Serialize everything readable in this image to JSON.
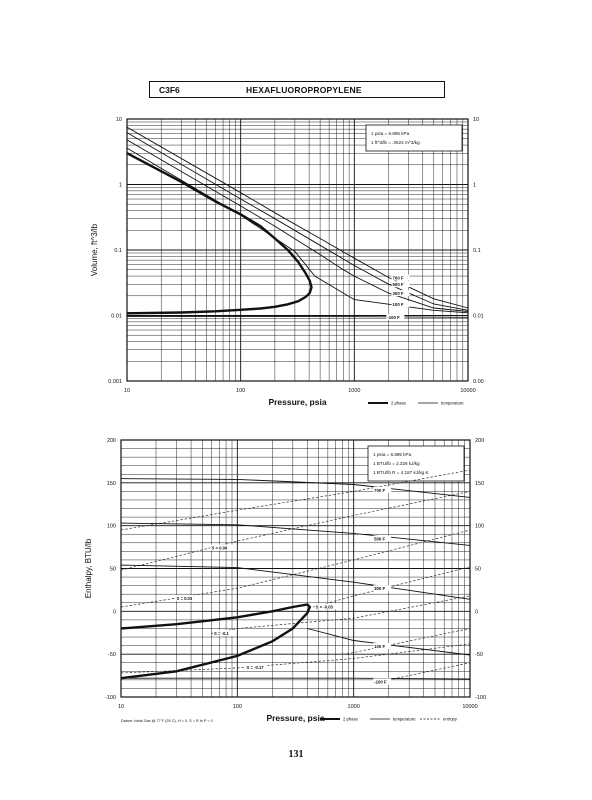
{
  "header": {
    "formula": "C3F6",
    "name": "HEXAFLUOROPROPYLENE"
  },
  "page_number": "131",
  "chart_data": [
    {
      "type": "line",
      "xlabel": "Pressure,  psia",
      "ylabel": "Volume,  ft^3/lb",
      "xscale": "log",
      "yscale": "log",
      "xlim": [
        10,
        10000
      ],
      "ylim": [
        0.001,
        10
      ],
      "x_ticks": [
        "10",
        "100",
        "1000",
        "10000"
      ],
      "y_ticks_left": [
        "0.001",
        "0.01",
        "0.1",
        "1",
        "10"
      ],
      "y_ticks_right": [
        "0.00",
        "0.01",
        "0.1",
        "1",
        "10"
      ],
      "grid": true,
      "info_box": [
        "1 psia  =  6.895 kPa",
        "1 ft^3/lb  =  .0624 m^3/kg"
      ],
      "legend": [
        {
          "label": "2 phase",
          "style": "heavy"
        },
        {
          "label": "temperature",
          "style": "thin"
        }
      ],
      "two_phase": {
        "x": [
          10,
          30,
          60,
          100,
          150,
          200,
          260,
          320,
          370,
          405,
          420,
          405,
          370,
          320,
          260,
          200,
          150,
          100,
          60,
          30,
          10
        ],
        "y": [
          3.0,
          1.1,
          0.55,
          0.35,
          0.23,
          0.15,
          0.1,
          0.066,
          0.045,
          0.034,
          0.027,
          0.022,
          0.019,
          0.0165,
          0.0148,
          0.0136,
          0.0128,
          0.0122,
          0.0116,
          0.0111,
          0.0108
        ]
      },
      "series": [
        {
          "name": "700 F",
          "x": [
            10,
            100,
            200,
            500,
            1000,
            2000,
            5000,
            10000
          ],
          "y": [
            7.5,
            0.75,
            0.37,
            0.15,
            0.075,
            0.038,
            0.018,
            0.013
          ]
        },
        {
          "name": "500 F",
          "x": [
            10,
            100,
            200,
            500,
            1000,
            2000,
            5000,
            10000
          ],
          "y": [
            6.2,
            0.6,
            0.3,
            0.118,
            0.058,
            0.03,
            0.015,
            0.012
          ]
        },
        {
          "name": "300 F",
          "x": [
            10,
            100,
            200,
            500,
            800,
            1000,
            2000,
            5000,
            10000
          ],
          "y": [
            4.8,
            0.47,
            0.23,
            0.085,
            0.05,
            0.04,
            0.022,
            0.013,
            0.0115
          ]
        },
        {
          "name": "100 F",
          "x": [
            10,
            100,
            300,
            450,
            1000,
            5000,
            10000
          ],
          "y": [
            3.6,
            0.34,
            0.095,
            0.04,
            0.0175,
            0.012,
            0.011
          ]
        },
        {
          "name": "-100 F",
          "x": [
            10,
            100,
            1000,
            10000
          ],
          "y": [
            0.0097,
            0.0097,
            0.0096,
            0.0094
          ]
        }
      ]
    },
    {
      "type": "line",
      "xlabel": "Pressure,  psia",
      "ylabel": "Enthalpy,  BTU/lb",
      "xscale": "log",
      "xlim": [
        10,
        10000
      ],
      "ylim": [
        -100,
        200
      ],
      "x_ticks": [
        "10",
        "100",
        "1000",
        "10000"
      ],
      "y_ticks": [
        "-100",
        "-50",
        "0",
        "50",
        "100",
        "150",
        "200"
      ],
      "y_ticks_right": [
        "-100",
        "-50",
        "0",
        "50",
        "100",
        "150",
        "200"
      ],
      "grid": true,
      "info_box": [
        "1 psia  =  6.895 kPa",
        "1 BTU/lb  =  2.326 kJ/kg",
        "1 BTU/lb R  =  4.187 kJ/kg K"
      ],
      "footnote": "Datum: Ideal Gas @ 77 F (25 C),  H = 0,  S = R ln P = 0",
      "legend": [
        {
          "label": "2 phase",
          "style": "heavy"
        },
        {
          "label": "temperature",
          "style": "thin"
        },
        {
          "label": "entropy",
          "style": "dashed"
        }
      ],
      "two_phase": {
        "x": [
          10,
          30,
          100,
          200,
          300,
          400,
          420,
          400,
          300,
          200,
          100,
          30,
          10
        ],
        "y": [
          -20,
          -15,
          -7,
          0,
          5,
          8,
          5,
          -2,
          -20,
          -35,
          -52,
          -70,
          -78
        ]
      },
      "series": [
        {
          "name": "700 F",
          "x": [
            10,
            100,
            1000,
            10000
          ],
          "y": [
            155,
            154,
            148,
            133
          ]
        },
        {
          "name": "500 F",
          "x": [
            10,
            100,
            1000,
            10000
          ],
          "y": [
            103,
            101,
            91,
            77
          ]
        },
        {
          "name": "300 F",
          "x": [
            10,
            100,
            1000,
            10000
          ],
          "y": [
            54,
            51,
            34,
            14
          ]
        },
        {
          "name": "100 F",
          "x": [
            400,
            1000,
            10000
          ],
          "y": [
            -20,
            -34,
            -51
          ]
        },
        {
          "name": "-100 F",
          "x": [
            10,
            100,
            1000,
            10000
          ],
          "y": [
            -78,
            -78,
            -78,
            -79
          ]
        }
      ],
      "entropy_series": [
        {
          "name": "S = 0.09",
          "x": [
            10,
            100,
            1000,
            10000
          ],
          "y": [
            48,
            82,
            112,
            140
          ]
        },
        {
          "name": "S = 0.03",
          "x": [
            10,
            100,
            1000,
            10000
          ],
          "y": [
            5,
            27,
            60,
            95
          ]
        },
        {
          "name": "S = -0.03",
          "x": [
            450,
            1000,
            10000
          ],
          "y": [
            5,
            18,
            52
          ]
        },
        {
          "name": "S = -0.1",
          "x": [
            60,
            100,
            1000,
            10000
          ],
          "y": [
            -26,
            -20,
            -8,
            18
          ]
        },
        {
          "name": "S = -0.17",
          "x": [
            10,
            100,
            1000,
            10000
          ],
          "y": [
            -72,
            -66,
            -55,
            -38
          ]
        }
      ],
      "extra_entropy_series": [
        {
          "x": [
            10,
            100,
            1000,
            10000
          ],
          "y": [
            95,
            118,
            140,
            165
          ]
        },
        {
          "x": [
            800,
            1000,
            10000
          ],
          "y": [
            -50,
            -48,
            -20
          ]
        },
        {
          "x": [
            2000,
            10000
          ],
          "y": [
            -80,
            -60
          ]
        }
      ]
    }
  ]
}
